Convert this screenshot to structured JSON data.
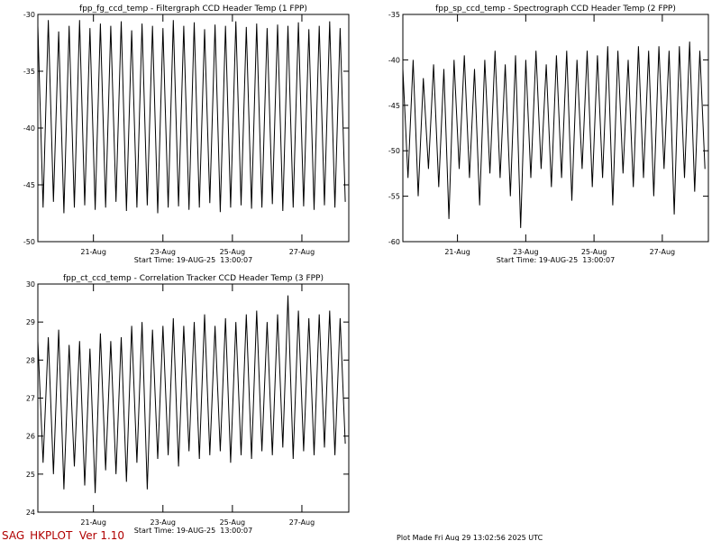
{
  "chart_data": [
    {
      "type": "line",
      "title": "fpp_fg_ccd_temp - Filtergraph CCD Header Temp (1 FPP)",
      "subtitle": "Start Time: 19-AUG-25  13:00:07",
      "x": [
        19.4,
        19.55,
        19.7,
        19.85,
        20,
        20.15,
        20.3,
        20.45,
        20.6,
        20.75,
        20.9,
        21.05,
        21.2,
        21.35,
        21.5,
        21.65,
        21.8,
        21.95,
        22.1,
        22.25,
        22.4,
        22.55,
        22.7,
        22.85,
        23,
        23.15,
        23.3,
        23.45,
        23.6,
        23.75,
        23.9,
        24.05,
        24.2,
        24.35,
        24.5,
        24.65,
        24.8,
        24.95,
        25.1,
        25.25,
        25.4,
        25.55,
        25.7,
        25.85,
        26,
        26.15,
        26.3,
        26.45,
        26.6,
        26.75,
        26.9,
        27.05,
        27.2,
        27.35,
        27.5,
        27.65,
        27.8,
        27.95,
        28.1,
        28.25
      ],
      "series": [
        {
          "color": "#000000",
          "values": [
            -31,
            -47,
            -30.5,
            -46.5,
            -31.5,
            -47.5,
            -31,
            -47,
            -30.5,
            -46.8,
            -31.2,
            -47.2,
            -30.8,
            -47,
            -31,
            -46.5,
            -30.6,
            -47.3,
            -31.4,
            -47,
            -30.8,
            -46.8,
            -31,
            -47.5,
            -31.2,
            -47,
            -30.5,
            -46.9,
            -31,
            -47.2,
            -30.7,
            -47,
            -31.3,
            -46.6,
            -30.9,
            -47.4,
            -31,
            -47,
            -30.6,
            -46.8,
            -31.1,
            -47.1,
            -30.8,
            -47,
            -31.2,
            -46.7,
            -30.9,
            -47.3,
            -31,
            -47,
            -30.7,
            -46.9,
            -31.3,
            -47.2,
            -31,
            -46.8,
            -30.6,
            -47,
            -31.2,
            -46.5
          ]
        }
      ],
      "xlim": [
        19.4,
        28.35
      ],
      "xticks": [
        {
          "value": 21,
          "label": "21-Aug"
        },
        {
          "value": 23,
          "label": "23-Aug"
        },
        {
          "value": 25,
          "label": "25-Aug"
        },
        {
          "value": 27,
          "label": "27-Aug"
        }
      ],
      "ylim": [
        -50,
        -30
      ],
      "yticks": [
        -50,
        -45,
        -40,
        -35,
        -30
      ]
    },
    {
      "type": "line",
      "title": "fpp_sp_ccd_temp - Spectrograph CCD Header Temp (2 FPP)",
      "subtitle": "Start Time: 19-AUG-25  13:00:07",
      "x": [
        19.4,
        19.55,
        19.7,
        19.85,
        20,
        20.15,
        20.3,
        20.45,
        20.6,
        20.75,
        20.9,
        21.05,
        21.2,
        21.35,
        21.5,
        21.65,
        21.8,
        21.95,
        22.1,
        22.25,
        22.4,
        22.55,
        22.7,
        22.85,
        23,
        23.15,
        23.3,
        23.45,
        23.6,
        23.75,
        23.9,
        24.05,
        24.2,
        24.35,
        24.5,
        24.65,
        24.8,
        24.95,
        25.1,
        25.25,
        25.4,
        25.55,
        25.7,
        25.85,
        26,
        26.15,
        26.3,
        26.45,
        26.6,
        26.75,
        26.9,
        27.05,
        27.2,
        27.35,
        27.5,
        27.65,
        27.8,
        27.95,
        28.1,
        28.25
      ],
      "series": [
        {
          "color": "#000000",
          "values": [
            -41,
            -53,
            -40,
            -55,
            -42,
            -52,
            -40.5,
            -54,
            -41,
            -57.5,
            -40,
            -52,
            -39.5,
            -53,
            -41,
            -56,
            -40,
            -52.5,
            -39,
            -53,
            -40.5,
            -55,
            -39.5,
            -58.5,
            -40,
            -53,
            -39,
            -52,
            -40.5,
            -54,
            -39.5,
            -53,
            -39,
            -55.5,
            -40,
            -52,
            -39,
            -54,
            -39.5,
            -53,
            -38.5,
            -56,
            -39,
            -52.5,
            -40,
            -54,
            -38.5,
            -53,
            -39,
            -55,
            -38.5,
            -52,
            -39,
            -57,
            -38.5,
            -53,
            -38,
            -54.5,
            -39,
            -52
          ]
        }
      ],
      "xlim": [
        19.4,
        28.35
      ],
      "xticks": [
        {
          "value": 21,
          "label": "21-Aug"
        },
        {
          "value": 23,
          "label": "23-Aug"
        },
        {
          "value": 25,
          "label": "25-Aug"
        },
        {
          "value": 27,
          "label": "27-Aug"
        }
      ],
      "ylim": [
        -60,
        -35
      ],
      "yticks": [
        -60,
        -55,
        -50,
        -45,
        -40,
        -35
      ]
    },
    {
      "type": "line",
      "title": "fpp_ct_ccd_temp - Correlation Tracker CCD Header Temp (3 FPP)",
      "subtitle": "Start Time: 19-AUG-25  13:00:07",
      "x": [
        19.4,
        19.55,
        19.7,
        19.85,
        20,
        20.15,
        20.3,
        20.45,
        20.6,
        20.75,
        20.9,
        21.05,
        21.2,
        21.35,
        21.5,
        21.65,
        21.8,
        21.95,
        22.1,
        22.25,
        22.4,
        22.55,
        22.7,
        22.85,
        23,
        23.15,
        23.3,
        23.45,
        23.6,
        23.75,
        23.9,
        24.05,
        24.2,
        24.35,
        24.5,
        24.65,
        24.8,
        24.95,
        25.1,
        25.25,
        25.4,
        25.55,
        25.7,
        25.85,
        26,
        26.15,
        26.3,
        26.45,
        26.6,
        26.75,
        26.9,
        27.05,
        27.2,
        27.35,
        27.5,
        27.65,
        27.8,
        27.95,
        28.1,
        28.25
      ],
      "series": [
        {
          "color": "#000000",
          "values": [
            28.5,
            25.3,
            28.6,
            25,
            28.8,
            24.6,
            28.4,
            25.2,
            28.5,
            24.7,
            28.3,
            24.5,
            28.7,
            25.1,
            28.5,
            25,
            28.6,
            24.8,
            28.9,
            25.3,
            29,
            24.6,
            28.8,
            25.4,
            28.9,
            25.5,
            29.1,
            25.2,
            28.9,
            25.6,
            29,
            25.4,
            29.2,
            25.5,
            28.9,
            25.6,
            29.1,
            25.3,
            29,
            25.5,
            29.2,
            25.4,
            29.3,
            25.6,
            29,
            25.5,
            29.2,
            25.7,
            29.7,
            25.4,
            29.3,
            25.6,
            29.1,
            25.5,
            29.2,
            25.7,
            29.3,
            25.5,
            29.1,
            25.8
          ]
        }
      ],
      "xlim": [
        19.4,
        28.35
      ],
      "xticks": [
        {
          "value": 21,
          "label": "21-Aug"
        },
        {
          "value": 23,
          "label": "23-Aug"
        },
        {
          "value": 25,
          "label": "25-Aug"
        },
        {
          "value": 27,
          "label": "27-Aug"
        }
      ],
      "ylim": [
        24,
        30
      ],
      "yticks": [
        24,
        25,
        26,
        27,
        28,
        29,
        30
      ]
    }
  ],
  "footer": {
    "program": "SAG_HKPLOT  Ver 1.10",
    "plot_made": "Plot Made Fri Aug 29 13:02:56 2025 UTC"
  }
}
